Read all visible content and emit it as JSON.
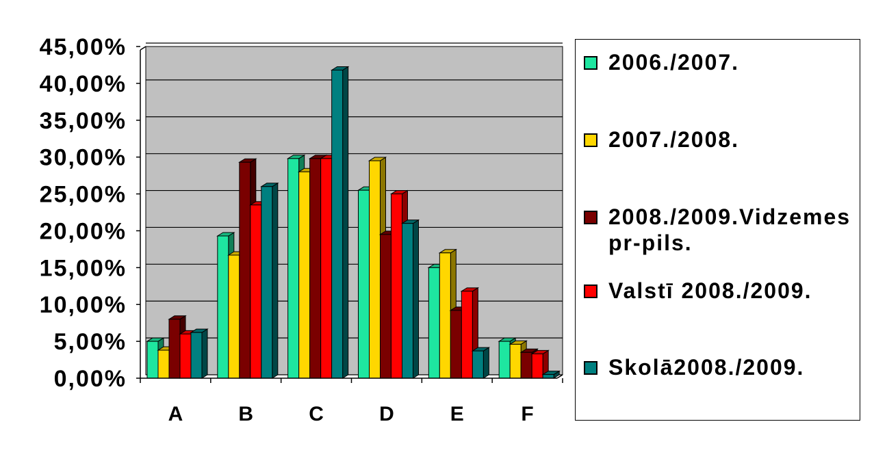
{
  "chart_data": {
    "type": "bar",
    "categories": [
      "A",
      "B",
      "C",
      "D",
      "E",
      "F"
    ],
    "y_ticks": [
      "0,00%",
      "5,00%",
      "10,00%",
      "15,00%",
      "20,00%",
      "25,00%",
      "30,00%",
      "35,00%",
      "40,00%",
      "45,00%"
    ],
    "ylim": [
      0,
      45
    ],
    "grid": true,
    "legend_position": "right",
    "series": [
      {
        "name": "2006./2007.",
        "color": "#1ee6a0",
        "values": [
          5.0,
          19.3,
          29.8,
          25.5,
          15.0,
          5.0
        ]
      },
      {
        "name": "2007./2008.",
        "color": "#ffd700",
        "values": [
          3.8,
          16.7,
          28.0,
          29.5,
          17.0,
          4.6
        ]
      },
      {
        "name": "2008./2009.Vidzemes pr-pils.",
        "color": "#7a0000",
        "values": [
          8.0,
          29.3,
          29.8,
          19.5,
          9.2,
          3.5
        ]
      },
      {
        "name": "Valstī 2008./2009.",
        "color": "#ff0000",
        "values": [
          6.0,
          23.5,
          29.8,
          25.0,
          11.8,
          3.3
        ]
      },
      {
        "name": "Skolā2008./2009.",
        "color": "#008080",
        "values": [
          6.2,
          26.0,
          41.8,
          21.0,
          3.7,
          0.5
        ]
      }
    ]
  },
  "legend": {
    "items": [
      {
        "label": "2006./2007.",
        "color": "#1ee6a0"
      },
      {
        "label": "2007./2008.",
        "color": "#ffd700"
      },
      {
        "label": "2008./2009.Vidzemes pr-pils.",
        "color": "#7a0000"
      },
      {
        "label": "Valstī 2008./2009.",
        "color": "#ff0000"
      },
      {
        "label": "Skolā2008./2009.",
        "color": "#008080"
      }
    ]
  },
  "plot_background": "#c0c0c0"
}
